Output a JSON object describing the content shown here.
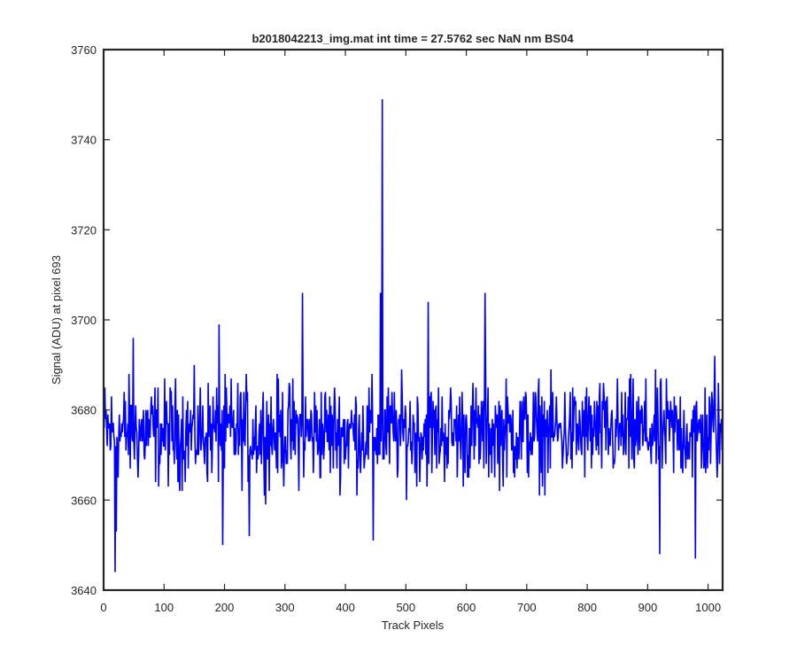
{
  "figure": {
    "background": "#ffffff",
    "axes_color": "#262626"
  },
  "chart_data": {
    "type": "line",
    "title": "b2018042213_img.mat int time = 27.5762 sec  NaN nm BS04",
    "xlabel": "Track Pixels",
    "ylabel": "Signal (ADU) at pixel 693",
    "xlim": [
      0,
      1024
    ],
    "ylim": [
      3640,
      3760
    ],
    "xticks": [
      0,
      100,
      200,
      300,
      400,
      500,
      600,
      700,
      800,
      900,
      1000
    ],
    "yticks": [
      3640,
      3660,
      3680,
      3700,
      3720,
      3740,
      3760
    ],
    "grid": false,
    "series": [
      {
        "color": "#0000ff",
        "n_points": 1024,
        "baseline": 3675,
        "noise_range": [
          3660,
          3692
        ],
        "notable_points": [
          {
            "x": 18,
            "y": 3644
          },
          {
            "x": 20,
            "y": 3653
          },
          {
            "x": 48,
            "y": 3696
          },
          {
            "x": 190,
            "y": 3699
          },
          {
            "x": 196,
            "y": 3650
          },
          {
            "x": 240,
            "y": 3652
          },
          {
            "x": 328,
            "y": 3706
          },
          {
            "x": 445,
            "y": 3651
          },
          {
            "x": 457,
            "y": 3706
          },
          {
            "x": 460,
            "y": 3749
          },
          {
            "x": 536,
            "y": 3704
          },
          {
            "x": 630,
            "y": 3706
          },
          {
            "x": 919,
            "y": 3648
          },
          {
            "x": 978,
            "y": 3647
          },
          {
            "x": 1010,
            "y": 3692
          }
        ]
      }
    ]
  }
}
